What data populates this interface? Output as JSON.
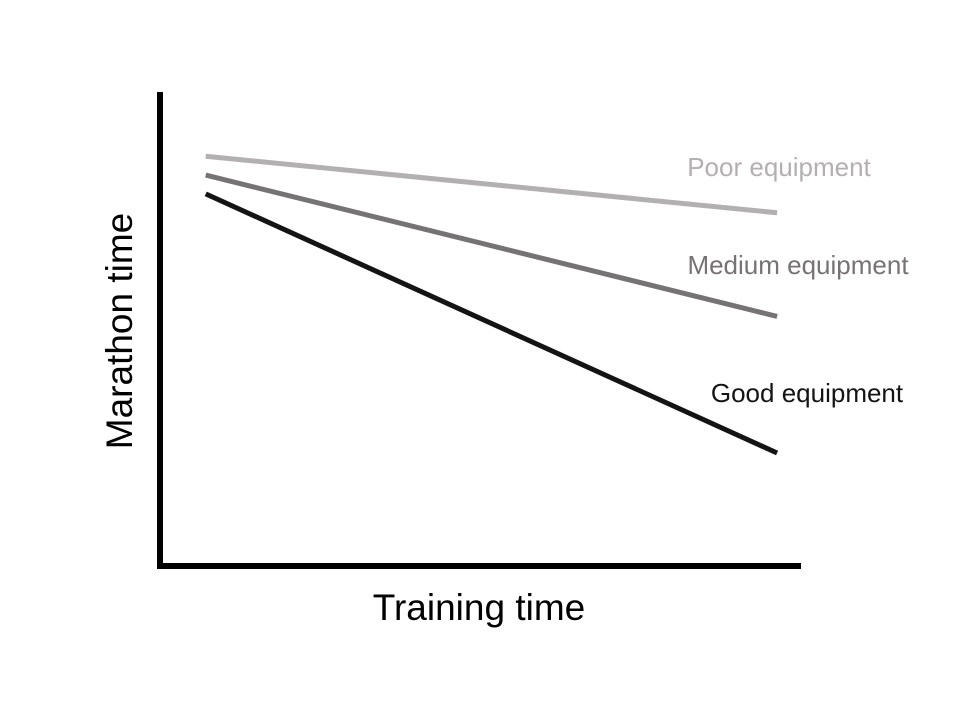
{
  "chart_data": {
    "type": "line",
    "title": "",
    "xlabel": "Training time",
    "ylabel": "Marathon time",
    "grid": false,
    "legend": "direct-labels-right",
    "ticks": false,
    "x": [
      0,
      1
    ],
    "xlim": [
      -0.08,
      1.04
    ],
    "ylim": [
      0,
      1
    ],
    "series": [
      {
        "name": "Poor equipment",
        "color": "#b3b0b1",
        "values": [
          0.87,
          0.75
        ]
      },
      {
        "name": "Medium equipment",
        "color": "#767374",
        "values": [
          0.83,
          0.53
        ]
      },
      {
        "name": "Good equipment",
        "color": "#141414",
        "values": [
          0.79,
          0.24
        ]
      }
    ]
  }
}
